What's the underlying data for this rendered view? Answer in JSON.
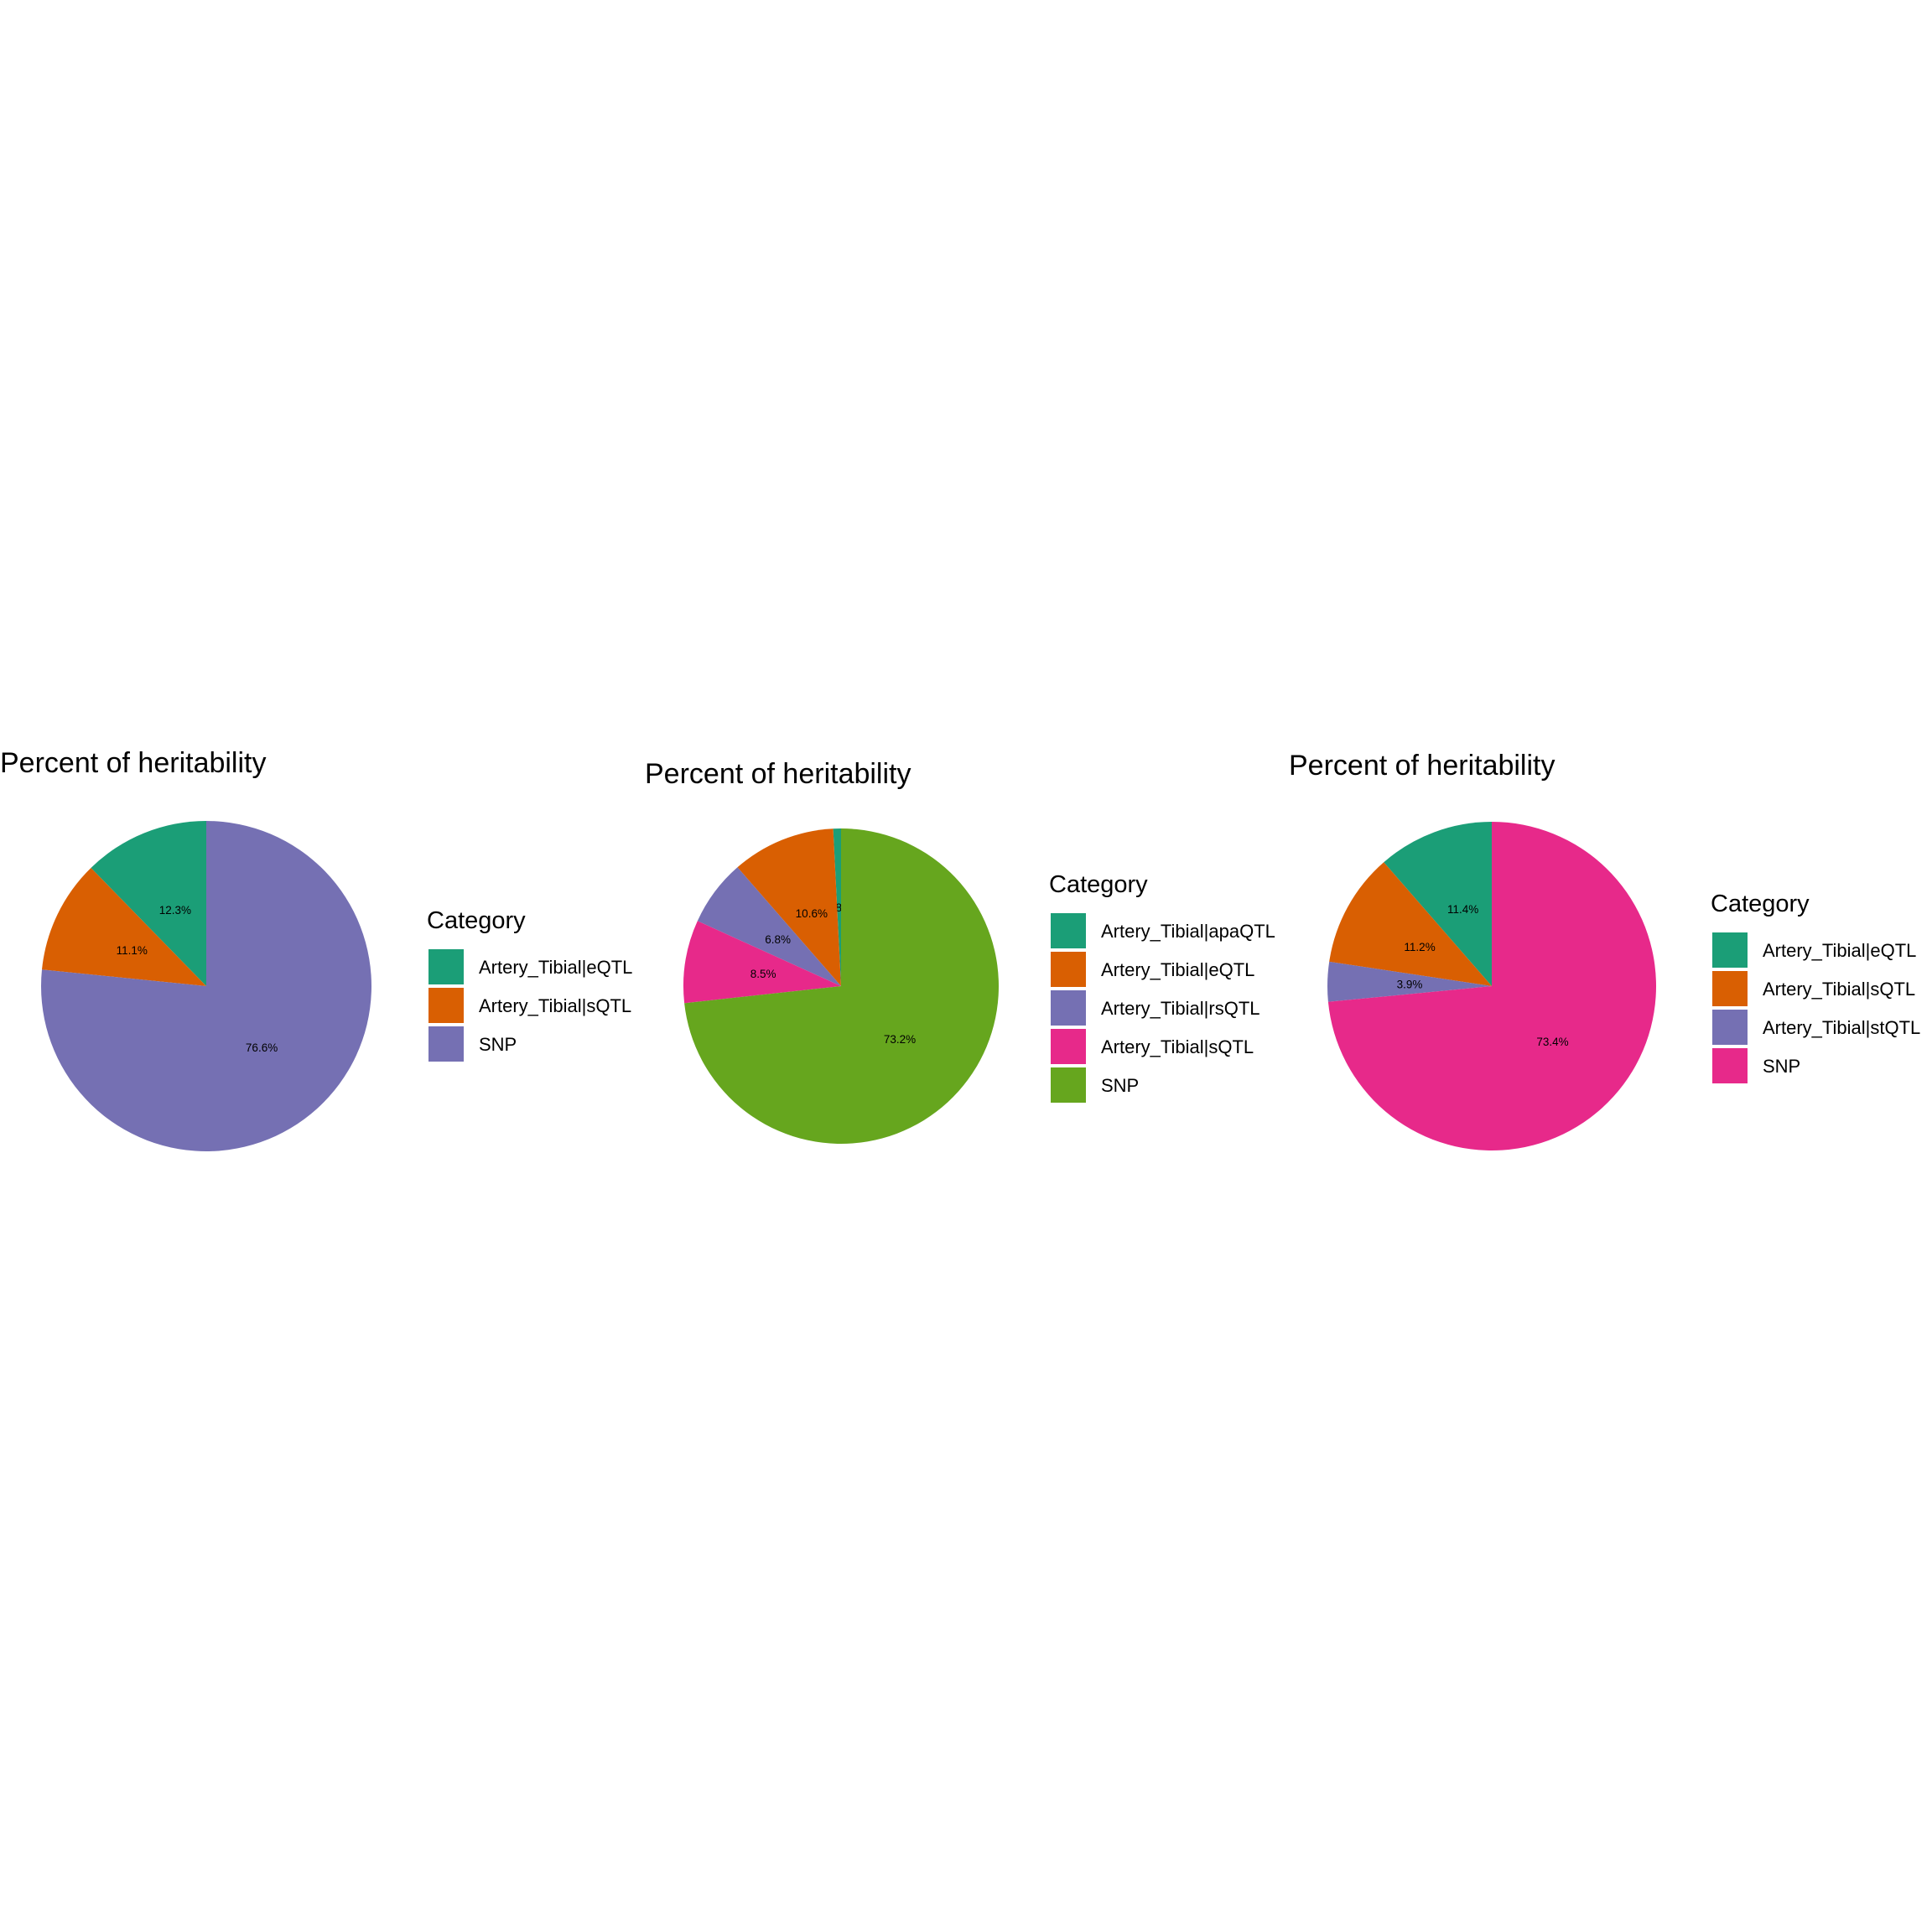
{
  "chart_data": [
    {
      "type": "pie",
      "title": "Percent of heritability",
      "legend_title": "Category",
      "legend_position": "right",
      "slices": [
        {
          "label": "Artery_Tibial|eQTL",
          "value": 12.3,
          "value_label": "12.3%",
          "color": "#1B9E77"
        },
        {
          "label": "Artery_Tibial|sQTL",
          "value": 11.1,
          "value_label": "11.1%",
          "color": "#D95F02"
        },
        {
          "label": "SNP",
          "value": 76.6,
          "value_label": "76.6%",
          "color": "#7570B3"
        }
      ]
    },
    {
      "type": "pie",
      "title": "Percent of heritability",
      "legend_title": "Category",
      "legend_position": "right",
      "slices": [
        {
          "label": "Artery_Tibial|apaQTL",
          "value": 0.8,
          "value_label": "0.8%",
          "color": "#1B9E77"
        },
        {
          "label": "Artery_Tibial|eQTL",
          "value": 10.6,
          "value_label": "10.6%",
          "color": "#D95F02"
        },
        {
          "label": "Artery_Tibial|rsQTL",
          "value": 6.8,
          "value_label": "6.8%",
          "color": "#7570B3"
        },
        {
          "label": "Artery_Tibial|sQTL",
          "value": 8.5,
          "value_label": "8.5%",
          "color": "#E7298A"
        },
        {
          "label": "SNP",
          "value": 73.2,
          "value_label": "73.2%",
          "color": "#66A61E"
        }
      ]
    },
    {
      "type": "pie",
      "title": "Percent of heritability",
      "legend_title": "Category",
      "legend_position": "right",
      "slices": [
        {
          "label": "Artery_Tibial|eQTL",
          "value": 11.4,
          "value_label": "11.4%",
          "color": "#1B9E77"
        },
        {
          "label": "Artery_Tibial|sQTL",
          "value": 11.2,
          "value_label": "11.2%",
          "color": "#D95F02"
        },
        {
          "label": "Artery_Tibial|stQTL",
          "value": 3.9,
          "value_label": "3.9%",
          "color": "#7570B3"
        },
        {
          "label": "SNP",
          "value": 73.4,
          "value_label": "73.4%",
          "color": "#E7298A"
        }
      ]
    }
  ]
}
